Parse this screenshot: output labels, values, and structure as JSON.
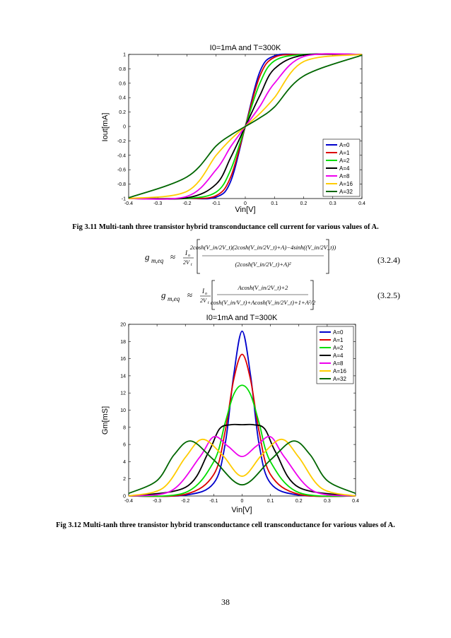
{
  "page_number": "38",
  "figure1": {
    "caption": "Fig 3.11 Multi-tanh three transistor hybrid transconductance cell current for various values of A.",
    "chart_data": {
      "type": "line",
      "title": "I0=1mA and T=300K",
      "xlabel": "Vin[V]",
      "ylabel": "Iout[mA]",
      "xlim": [
        -0.4,
        0.4
      ],
      "ylim": [
        -1,
        1
      ],
      "xticks": [
        "-0.4",
        "-0.3",
        "-0.2",
        "-0.1",
        "0",
        "0.1",
        "0.2",
        "0.3",
        "0.4"
      ],
      "yticks": [
        "-1",
        "-0.8",
        "-0.6",
        "-0.4",
        "-0.2",
        "0",
        "0.2",
        "0.4",
        "0.6",
        "0.8",
        "1"
      ],
      "grid": false,
      "legend": "bottom-right",
      "series": [
        {
          "name": "A=0",
          "color": "#0000cc",
          "x": [
            -0.4,
            -0.2,
            -0.1,
            -0.05,
            0,
            0.05,
            0.1,
            0.2,
            0.4
          ],
          "y": [
            -1,
            -1,
            -0.98,
            -0.76,
            0,
            0.76,
            0.98,
            1,
            1
          ]
        },
        {
          "name": "A=1",
          "color": "#dd0000",
          "x": [
            -0.4,
            -0.2,
            -0.1,
            -0.05,
            0,
            0.05,
            0.1,
            0.2,
            0.4
          ],
          "y": [
            -1,
            -0.999,
            -0.96,
            -0.7,
            0,
            0.7,
            0.96,
            0.999,
            1
          ]
        },
        {
          "name": "A=2",
          "color": "#00dd00",
          "x": [
            -0.4,
            -0.2,
            -0.1,
            -0.05,
            0,
            0.05,
            0.1,
            0.2,
            0.4
          ],
          "y": [
            -1,
            -0.998,
            -0.91,
            -0.6,
            0,
            0.6,
            0.91,
            0.998,
            1
          ]
        },
        {
          "name": "A=4",
          "color": "#000000",
          "x": [
            -0.4,
            -0.2,
            -0.1,
            -0.05,
            0,
            0.05,
            0.1,
            0.2,
            0.4
          ],
          "y": [
            -1,
            -0.99,
            -0.8,
            -0.43,
            0,
            0.43,
            0.8,
            0.99,
            1
          ]
        },
        {
          "name": "A=8",
          "color": "#ee00ee",
          "x": [
            -0.4,
            -0.2,
            -0.1,
            -0.05,
            0,
            0.05,
            0.1,
            0.2,
            0.4
          ],
          "y": [
            -1,
            -0.97,
            -0.6,
            -0.28,
            0,
            0.28,
            0.6,
            0.97,
            1
          ]
        },
        {
          "name": "A=16",
          "color": "#ffcc00",
          "x": [
            -0.4,
            -0.2,
            -0.1,
            -0.05,
            0,
            0.05,
            0.1,
            0.2,
            0.4
          ],
          "y": [
            -1,
            -0.9,
            -0.4,
            -0.18,
            0,
            0.18,
            0.4,
            0.9,
            1
          ]
        },
        {
          "name": "A=32",
          "color": "#006600",
          "x": [
            -0.4,
            -0.2,
            -0.1,
            -0.05,
            0,
            0.05,
            0.1,
            0.2,
            0.4
          ],
          "y": [
            -0.99,
            -0.7,
            -0.27,
            -0.12,
            0,
            0.12,
            0.27,
            0.7,
            0.99
          ]
        }
      ]
    }
  },
  "eq1": {
    "lhs": "g",
    "lhs_sub": "m,eq",
    "approx": "≈",
    "frac_num": "I",
    "frac_num_sub": "o",
    "frac_den": "2V",
    "frac_den_sub": "t",
    "numerator": "2cosh(V_in/2V_t)(2cosh(V_in/2V_t)+A)−4sinh((V_in/2V_t))",
    "denominator": "(2cosh(V_in/2V_t)+A)²",
    "number": "(3.2.4)"
  },
  "eq2": {
    "lhs": "g",
    "lhs_sub": "m,eq",
    "approx": "≈",
    "frac_num": "I",
    "frac_num_sub": "o",
    "frac_den": "2V",
    "frac_den_sub": "t",
    "numerator": "Acosh(V_in/2V_t)+2",
    "denominator": "cosh(V_in/V_t)+Acosh(V_in/2V_t)+1+A²/2",
    "number": "(3.2.5)"
  },
  "figure2": {
    "caption": "Fig 3.12 Multi-tanh three transistor hybrid transconductance cell transconductance for various values of A.",
    "chart_data": {
      "type": "line",
      "title": "I0=1mA and T=300K",
      "xlabel": "Vin[V]",
      "ylabel": "Gm[mS]",
      "xlim": [
        -0.4,
        0.4
      ],
      "ylim": [
        0,
        20
      ],
      "xticks": [
        "-0.4",
        "-0.3",
        "-0.2",
        "-0.1",
        "0",
        "0.1",
        "0.2",
        "0.3",
        "0.4"
      ],
      "yticks": [
        "0",
        "2",
        "4",
        "6",
        "8",
        "10",
        "12",
        "14",
        "16",
        "18",
        "20"
      ],
      "grid": false,
      "legend": "top-right",
      "series": [
        {
          "name": "A=0",
          "color": "#0000cc",
          "x": [
            -0.4,
            -0.2,
            -0.1,
            -0.06,
            -0.03,
            0,
            0.03,
            0.06,
            0.1,
            0.2,
            0.4
          ],
          "y": [
            0,
            0.1,
            1.5,
            6,
            14,
            19.2,
            14,
            6,
            1.5,
            0.1,
            0
          ]
        },
        {
          "name": "A=1",
          "color": "#dd0000",
          "x": [
            -0.4,
            -0.2,
            -0.1,
            -0.06,
            -0.03,
            0,
            0.03,
            0.06,
            0.1,
            0.2,
            0.4
          ],
          "y": [
            0,
            0.2,
            2.5,
            7.5,
            13.5,
            16.5,
            13.5,
            7.5,
            2.5,
            0.2,
            0
          ]
        },
        {
          "name": "A=2",
          "color": "#00dd00",
          "x": [
            -0.4,
            -0.2,
            -0.1,
            -0.06,
            -0.03,
            0,
            0.03,
            0.06,
            0.1,
            0.2,
            0.4
          ],
          "y": [
            0,
            0.4,
            4,
            8.5,
            11.8,
            12.9,
            11.8,
            8.5,
            4,
            0.4,
            0
          ]
        },
        {
          "name": "A=4",
          "color": "#000000",
          "x": [
            -0.4,
            -0.2,
            -0.12,
            -0.08,
            -0.04,
            0,
            0.04,
            0.08,
            0.12,
            0.2,
            0.4
          ],
          "y": [
            0,
            1,
            5,
            7.8,
            8.3,
            8.3,
            8.3,
            7.8,
            5,
            1,
            0
          ]
        },
        {
          "name": "A=8",
          "color": "#ee00ee",
          "x": [
            -0.4,
            -0.25,
            -0.15,
            -0.1,
            -0.05,
            0,
            0.05,
            0.1,
            0.15,
            0.25,
            0.4
          ],
          "y": [
            0,
            0.6,
            4.5,
            6.9,
            5.8,
            4.6,
            5.8,
            6.9,
            4.5,
            0.6,
            0
          ]
        },
        {
          "name": "A=16",
          "color": "#ffcc00",
          "x": [
            -0.4,
            -0.28,
            -0.2,
            -0.14,
            -0.07,
            0,
            0.07,
            0.14,
            0.2,
            0.28,
            0.4
          ],
          "y": [
            0,
            0.9,
            4.5,
            6.6,
            4.8,
            2.3,
            4.8,
            6.6,
            4.5,
            0.9,
            0
          ]
        },
        {
          "name": "A=32",
          "color": "#006600",
          "x": [
            -0.4,
            -0.3,
            -0.24,
            -0.18,
            -0.1,
            0,
            0.1,
            0.18,
            0.24,
            0.3,
            0.4
          ],
          "y": [
            0.3,
            1.8,
            4.8,
            6.4,
            4.2,
            1.3,
            4.2,
            6.4,
            4.8,
            1.8,
            0.3
          ]
        }
      ]
    }
  }
}
